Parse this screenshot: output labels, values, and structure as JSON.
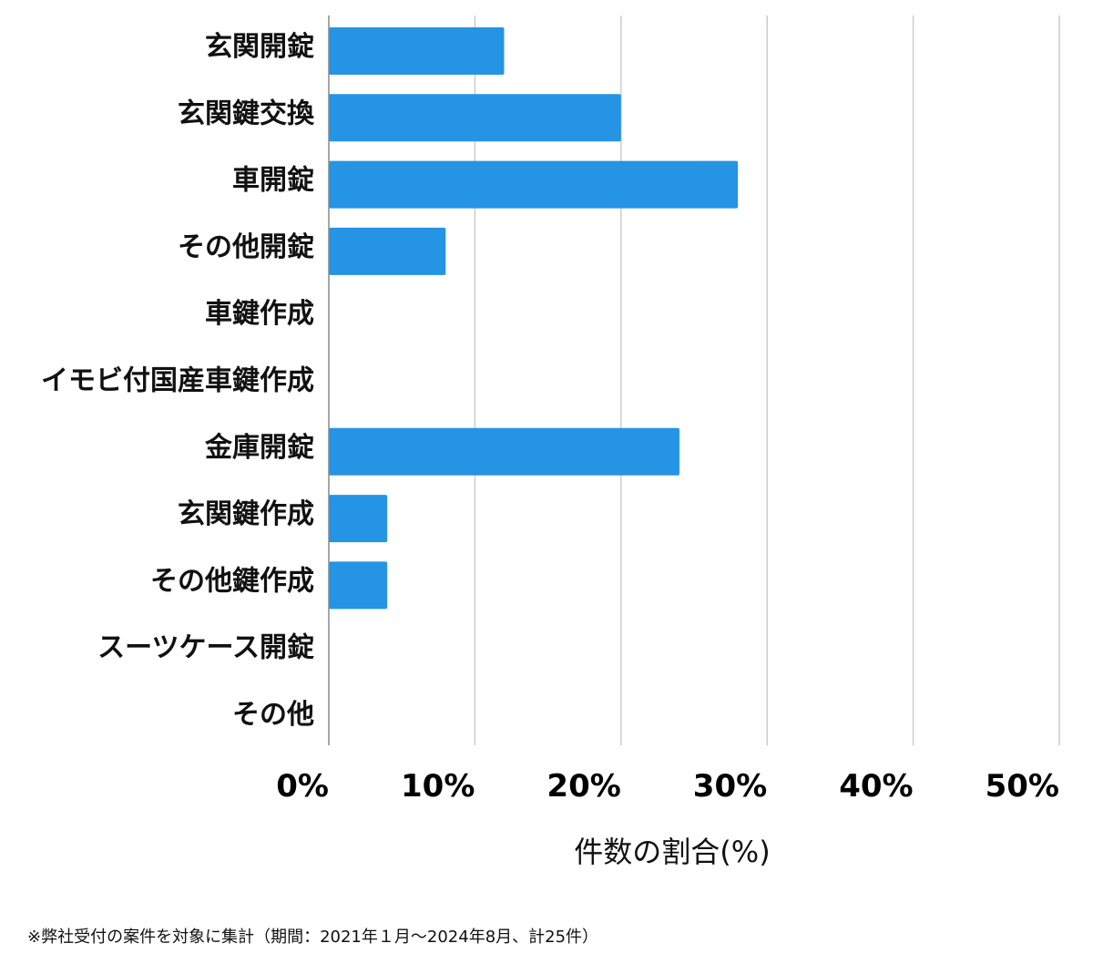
{
  "chart_data": {
    "type": "bar",
    "orientation": "horizontal",
    "categories": [
      "玄関開錠",
      "玄関鍵交換",
      "車開錠",
      "その他開錠",
      "車鍵作成",
      "イモビ付国産車鍵作成",
      "金庫開錠",
      "玄関鍵作成",
      "その他鍵作成",
      "スーツケース開錠",
      "その他"
    ],
    "values": [
      12,
      20,
      28,
      8,
      0,
      0,
      24,
      4,
      4,
      0,
      0
    ],
    "xlabel": "件数の割合(%)",
    "xlim": [
      0,
      50
    ],
    "xticks": [
      0,
      10,
      20,
      30,
      40,
      50
    ],
    "tick_suffix": "%",
    "grid": "vertical",
    "bar_color": "#2594e4",
    "grid_color": "#cccccc"
  },
  "footnote": "※弊社受付の案件を対象に集計（期間：2021年１月〜2024年8月、計25件）"
}
